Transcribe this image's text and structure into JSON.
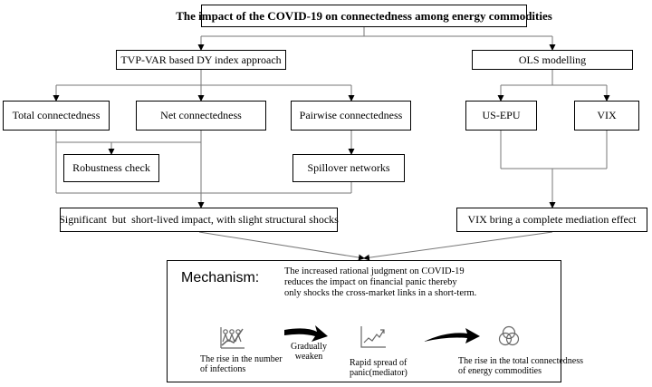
{
  "title": "The impact of the COVID-19 on connectedness among energy commodities",
  "left_branch": {
    "header": "TVP-VAR based DY index approach",
    "total": "Total connectedness",
    "net": "Net connectedness",
    "pairwise": "Pairwise connectedness",
    "robustness": "Robustness check",
    "spillover": "Spillover networks",
    "result": "Significant  but  short-lived impact, with slight structural shocks"
  },
  "right_branch": {
    "header": "OLS modelling",
    "usepu": "US-EPU",
    "vix": "VIX",
    "result": "VIX bring a complete mediation effect"
  },
  "mechanism": {
    "label": "Mechanism:",
    "text_lines": [
      "The increased rational judgment on COVID-19",
      "reduces the impact on financial panic thereby",
      "only shocks the cross-market links in a short-term."
    ],
    "step1_lines": [
      "The rise in the number",
      "of infections"
    ],
    "arrow1_lines": [
      "Gradually",
      "weaken"
    ],
    "step2_lines": [
      "Rapid spread of",
      "panic(mediator)"
    ],
    "step3_lines": [
      "The rise in the total connectedness",
      "of energy commodities"
    ],
    "icons": [
      "people-chart-icon",
      "bold-arrow-icon",
      "rising-line-chart-icon",
      "bold-arrow-icon",
      "venn-circles-icon"
    ]
  }
}
